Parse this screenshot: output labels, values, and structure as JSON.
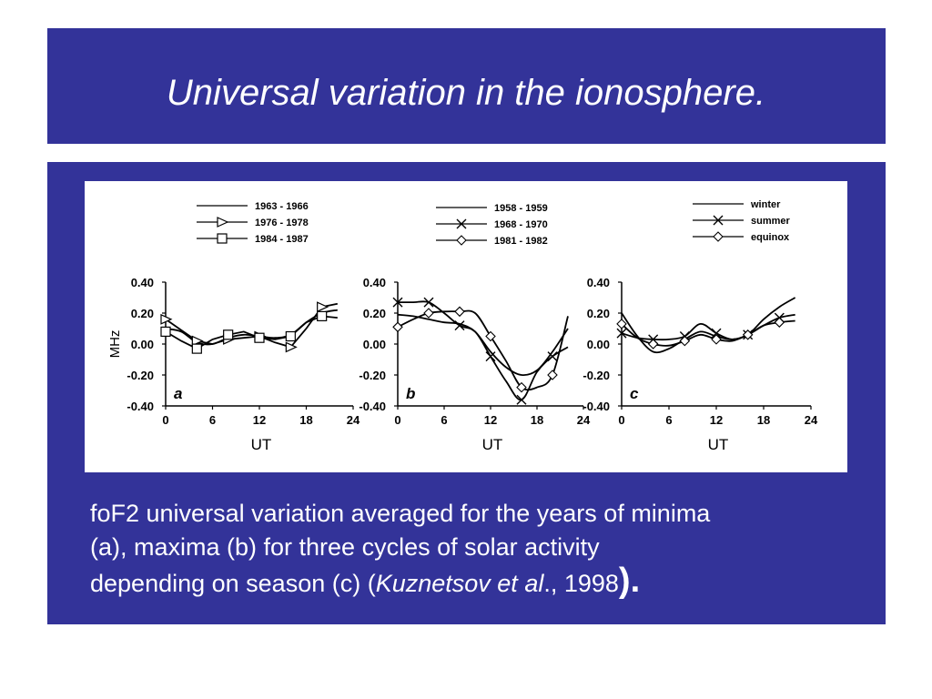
{
  "slide": {
    "title": "Universal variation in the ionosphere.",
    "caption": {
      "line1": "foF2 universal variation averaged for the years of minima",
      "line2": "(a),  maxima (b) for three cycles of solar activity",
      "line3_a": "depending on season (c) (",
      "line3_author": "Kuznetsov et al",
      "line3_b": "., 1998",
      "line3_paren": ").",
      "colors": {
        "text": "#ffffff",
        "band": "#333399"
      }
    }
  },
  "chart_data": [
    {
      "type": "line",
      "panel_label": "a",
      "xlabel": "UT",
      "ylabel": "MHz",
      "xlim": [
        0,
        24
      ],
      "ylim": [
        -0.4,
        0.4
      ],
      "xticks": [
        "0",
        "6",
        "12",
        "18",
        "24"
      ],
      "yticks": [
        "0.40",
        "0.20",
        "0.00",
        "-0.20",
        "-0.40"
      ],
      "legend_position": "top",
      "series": [
        {
          "name": "1963 - 1966",
          "marker": "none",
          "points": [
            [
              0,
              0.1
            ],
            [
              2,
              0.08
            ],
            [
              4,
              0.01
            ],
            [
              6,
              0.0
            ],
            [
              8,
              0.04
            ],
            [
              10,
              0.06
            ],
            [
              12,
              0.05
            ],
            [
              14,
              0.04
            ],
            [
              16,
              0.06
            ],
            [
              18,
              0.14
            ],
            [
              20,
              0.2
            ],
            [
              22,
              0.22
            ]
          ]
        },
        {
          "name": "1976 - 1978",
          "marker": "triangle",
          "points": [
            [
              0,
              0.16
            ],
            [
              2,
              0.09
            ],
            [
              4,
              0.02
            ],
            [
              6,
              0.0
            ],
            [
              8,
              0.03
            ],
            [
              10,
              0.04
            ],
            [
              12,
              0.05
            ],
            [
              14,
              0.01
            ],
            [
              16,
              -0.02
            ],
            [
              18,
              0.1
            ],
            [
              20,
              0.24
            ],
            [
              22,
              0.26
            ]
          ]
        },
        {
          "name": "1984 - 1987",
          "marker": "square",
          "points": [
            [
              0,
              0.08
            ],
            [
              2,
              0.02
            ],
            [
              4,
              -0.03
            ],
            [
              6,
              0.03
            ],
            [
              8,
              0.06
            ],
            [
              10,
              0.08
            ],
            [
              12,
              0.04
            ],
            [
              14,
              0.03
            ],
            [
              16,
              0.05
            ],
            [
              18,
              0.14
            ],
            [
              20,
              0.18
            ],
            [
              22,
              0.17
            ]
          ]
        }
      ]
    },
    {
      "type": "line",
      "panel_label": "b",
      "xlabel": "UT",
      "ylabel": "",
      "xlim": [
        0,
        24
      ],
      "ylim": [
        -0.4,
        0.4
      ],
      "xticks": [
        "0",
        "6",
        "12",
        "18",
        "24"
      ],
      "yticks": [
        "0.40",
        "0.20",
        "0.00",
        "-0.20",
        "-0.40"
      ],
      "legend_position": "top",
      "series": [
        {
          "name": "1958 - 1959",
          "marker": "none",
          "points": [
            [
              0,
              0.19
            ],
            [
              2,
              0.18
            ],
            [
              4,
              0.16
            ],
            [
              6,
              0.14
            ],
            [
              8,
              0.13
            ],
            [
              10,
              0.08
            ],
            [
              12,
              -0.05
            ],
            [
              14,
              -0.15
            ],
            [
              16,
              -0.2
            ],
            [
              18,
              -0.17
            ],
            [
              20,
              -0.05
            ],
            [
              22,
              0.1
            ]
          ]
        },
        {
          "name": "1968 - 1970",
          "marker": "x",
          "points": [
            [
              0,
              0.27
            ],
            [
              2,
              0.27
            ],
            [
              4,
              0.27
            ],
            [
              6,
              0.2
            ],
            [
              8,
              0.12
            ],
            [
              10,
              0.08
            ],
            [
              12,
              -0.08
            ],
            [
              14,
              -0.24
            ],
            [
              16,
              -0.36
            ],
            [
              18,
              -0.18
            ],
            [
              20,
              -0.08
            ],
            [
              22,
              -0.02
            ]
          ]
        },
        {
          "name": "1981 - 1982",
          "marker": "diamond",
          "points": [
            [
              0,
              0.11
            ],
            [
              2,
              0.16
            ],
            [
              4,
              0.2
            ],
            [
              6,
              0.21
            ],
            [
              8,
              0.21
            ],
            [
              10,
              0.2
            ],
            [
              12,
              0.05
            ],
            [
              14,
              -0.11
            ],
            [
              16,
              -0.28
            ],
            [
              18,
              -0.28
            ],
            [
              20,
              -0.2
            ],
            [
              22,
              0.18
            ]
          ]
        }
      ]
    },
    {
      "type": "line",
      "panel_label": "c",
      "xlabel": "UT",
      "ylabel": "",
      "xlim": [
        0,
        24
      ],
      "ylim": [
        -0.4,
        0.4
      ],
      "xticks": [
        "0",
        "6",
        "12",
        "18",
        "24"
      ],
      "yticks": [
        "0.40",
        "0.20",
        "0.00",
        "-0.20",
        "-0.40"
      ],
      "legend_position": "top-right",
      "series": [
        {
          "name": "winter",
          "marker": "none",
          "points": [
            [
              0,
              0.2
            ],
            [
              2,
              0.05
            ],
            [
              4,
              -0.05
            ],
            [
              6,
              -0.03
            ],
            [
              8,
              0.03
            ],
            [
              10,
              0.08
            ],
            [
              12,
              0.05
            ],
            [
              14,
              0.03
            ],
            [
              16,
              0.06
            ],
            [
              18,
              0.16
            ],
            [
              20,
              0.24
            ],
            [
              22,
              0.3
            ]
          ]
        },
        {
          "name": "summer",
          "marker": "x",
          "points": [
            [
              0,
              0.07
            ],
            [
              2,
              0.04
            ],
            [
              4,
              0.03
            ],
            [
              6,
              0.03
            ],
            [
              8,
              0.05
            ],
            [
              10,
              0.13
            ],
            [
              12,
              0.07
            ],
            [
              14,
              0.03
            ],
            [
              16,
              0.06
            ],
            [
              18,
              0.12
            ],
            [
              20,
              0.17
            ],
            [
              22,
              0.19
            ]
          ]
        },
        {
          "name": "equinox",
          "marker": "diamond",
          "points": [
            [
              0,
              0.13
            ],
            [
              2,
              0.04
            ],
            [
              4,
              0.0
            ],
            [
              6,
              -0.01
            ],
            [
              8,
              0.02
            ],
            [
              10,
              0.06
            ],
            [
              12,
              0.03
            ],
            [
              14,
              0.02
            ],
            [
              16,
              0.06
            ],
            [
              18,
              0.12
            ],
            [
              20,
              0.14
            ],
            [
              22,
              0.15
            ]
          ]
        }
      ]
    }
  ]
}
